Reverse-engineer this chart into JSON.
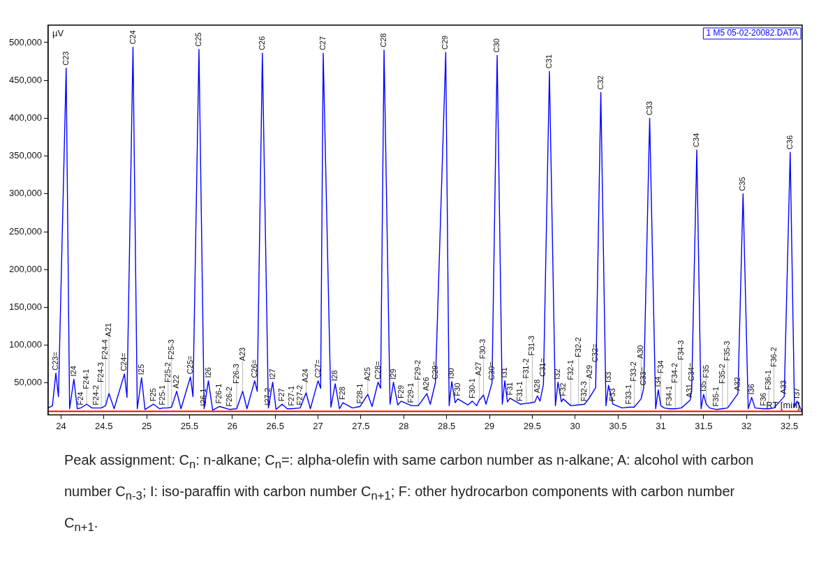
{
  "chart_data": {
    "type": "line",
    "xlabel": "RT [min]",
    "ylabel": "µV",
    "x": [
      23.85,
      23.9,
      23.94,
      23.97,
      24.06,
      24.1,
      24.15,
      24.19,
      24.23,
      24.3,
      24.36,
      24.41,
      24.47,
      24.52,
      24.56,
      24.62,
      24.74,
      24.77,
      24.84,
      24.89,
      24.94,
      24.98,
      25.08,
      25.15,
      25.19,
      25.25,
      25.29,
      25.35,
      25.4,
      25.51,
      25.54,
      25.61,
      25.67,
      25.72,
      25.77,
      25.85,
      25.97,
      26.05,
      26.12,
      26.17,
      26.26,
      26.29,
      26.35,
      26.42,
      26.47,
      26.51,
      26.58,
      26.64,
      26.69,
      26.79,
      26.86,
      26.91,
      27.0,
      27.03,
      27.06,
      27.15,
      27.2,
      27.25,
      27.29,
      27.4,
      27.49,
      27.58,
      27.63,
      27.7,
      27.73,
      27.77,
      27.84,
      27.88,
      27.93,
      27.97,
      28.09,
      28.17,
      28.27,
      28.31,
      28.37,
      28.49,
      28.53,
      28.56,
      28.6,
      28.63,
      28.75,
      28.8,
      28.85,
      28.88,
      28.93,
      28.96,
      29.03,
      29.09,
      29.15,
      29.18,
      29.21,
      29.24,
      29.36,
      29.43,
      29.5,
      29.53,
      29.56,
      29.59,
      29.63,
      29.7,
      29.77,
      29.8,
      29.84,
      29.86,
      29.95,
      30.04,
      30.11,
      30.17,
      30.24,
      30.3,
      30.36,
      30.39,
      30.44,
      30.55,
      30.63,
      30.69,
      30.77,
      30.8,
      30.87,
      30.94,
      30.97,
      31.0,
      31.04,
      31.1,
      31.17,
      31.24,
      31.34,
      31.36,
      31.42,
      31.47,
      31.5,
      31.53,
      31.57,
      31.65,
      31.72,
      31.78,
      31.9,
      31.96,
      32.02,
      32.06,
      32.1,
      32.2,
      32.26,
      32.32,
      32.44,
      32.51,
      32.56,
      32.59,
      32.65
    ],
    "series": [
      {
        "color": "#0000ff",
        "values": [
          17000,
          20000,
          63000,
          32000,
          466000,
          16000,
          55000,
          16000,
          17000,
          22000,
          17000,
          17000,
          17000,
          20000,
          36000,
          16000,
          62000,
          31000,
          494000,
          16000,
          57000,
          15000,
          22000,
          16000,
          17000,
          17000,
          18000,
          39000,
          16000,
          58000,
          32000,
          491000,
          16000,
          53000,
          14000,
          19000,
          15000,
          16000,
          39000,
          16000,
          53000,
          39000,
          486000,
          17000,
          51000,
          15000,
          22000,
          16000,
          16000,
          17000,
          37000,
          16000,
          53000,
          43000,
          486000,
          18000,
          49000,
          16000,
          24000,
          17000,
          19000,
          35000,
          19000,
          51000,
          43000,
          490000,
          22000,
          51000,
          21000,
          26000,
          20000,
          20000,
          36000,
          22000,
          51000,
          487000,
          20000,
          52000,
          24000,
          29000,
          21000,
          26000,
          20000,
          27000,
          34000,
          22000,
          50000,
          483000,
          22000,
          53000,
          25000,
          30000,
          22000,
          23000,
          24000,
          25000,
          33000,
          26000,
          48000,
          462000,
          20000,
          51000,
          25000,
          29000,
          20000,
          21000,
          22000,
          31000,
          44000,
          434000,
          20000,
          47000,
          22000,
          17000,
          18000,
          18000,
          29000,
          43000,
          400000,
          16000,
          41000,
          20000,
          17000,
          16000,
          16000,
          17000,
          27000,
          39000,
          358000,
          16000,
          35000,
          22000,
          17000,
          15000,
          16000,
          17000,
          36000,
          300000,
          16000,
          31000,
          17000,
          16000,
          16000,
          17000,
          32000,
          355000,
          18000,
          26000,
          12000
        ]
      }
    ],
    "xlim": [
      23.85,
      32.65
    ],
    "ylim": [
      8000,
      523000
    ],
    "xticks": [
      24,
      24.5,
      25,
      25.5,
      26,
      26.5,
      27,
      27.5,
      28,
      28.5,
      29,
      29.5,
      30,
      30.5,
      31,
      31.5,
      32,
      32.5
    ],
    "yticks": [
      {
        "value": 50000,
        "label": "50,000"
      },
      {
        "value": 100000,
        "label": "100,000"
      },
      {
        "value": 150000,
        "label": "150,000"
      },
      {
        "value": 200000,
        "label": "200,000"
      },
      {
        "value": 250000,
        "label": "250,000"
      },
      {
        "value": 300000,
        "label": "300,000"
      },
      {
        "value": 350000,
        "label": "350,000"
      },
      {
        "value": 400000,
        "label": "400,000"
      },
      {
        "value": 450000,
        "label": "450,000"
      },
      {
        "value": 500000,
        "label": "500,000"
      }
    ],
    "grid": false,
    "legend": false,
    "line_style": "solid",
    "ref_lines": [
      {
        "axis": "y",
        "value": 12500,
        "label": null,
        "color": "#ff0000"
      }
    ],
    "annotations": [
      "1 M5 05-02-20082.DATA",
      "Peak assignment: C$_{n}$: n-alkane; C$_{n}$=: alpha-olefin with same carbon number as n-alkane; A: alcohol with carbon number C$_{n-3}$; I: iso-paraffin with carbon number C$_{n+1}$; F: other hydrocarbon components with carbon number C$_{n+1}$.",
      {
        "text": "C23",
        "x": 24.06,
        "y": 466000
      },
      {
        "text": "C24",
        "x": 24.84,
        "y": 494000
      },
      {
        "text": "C25",
        "x": 25.61,
        "y": 491000
      },
      {
        "text": "C26",
        "x": 26.35,
        "y": 486000
      },
      {
        "text": "C27",
        "x": 27.06,
        "y": 486000
      },
      {
        "text": "C28",
        "x": 27.77,
        "y": 490000
      },
      {
        "text": "C29",
        "x": 28.49,
        "y": 487000
      },
      {
        "text": "C30",
        "x": 29.09,
        "y": 483000
      },
      {
        "text": "C31",
        "x": 29.7,
        "y": 462000
      },
      {
        "text": "C32",
        "x": 30.3,
        "y": 434000
      },
      {
        "text": "C33",
        "x": 30.87,
        "y": 400000
      },
      {
        "text": "C34",
        "x": 31.42,
        "y": 358000
      },
      {
        "text": "C35",
        "x": 31.96,
        "y": 300000
      },
      {
        "text": "C36",
        "x": 32.51,
        "y": 355000
      },
      {
        "text": "C23=",
        "x": 23.94,
        "y": 63000
      },
      {
        "text": "I24",
        "x": 24.15,
        "y": 55000
      },
      {
        "text": "F24",
        "x": 24.23,
        "y": 17000
      },
      {
        "text": "F24-1",
        "x": 24.3,
        "y": 22000
      },
      {
        "text": "F24-2",
        "x": 24.41,
        "y": 17000
      },
      {
        "text": "F24-3",
        "x": 24.47,
        "y": 17000
      },
      {
        "text": "F24-4",
        "x": 24.52,
        "y": 20000
      },
      {
        "text": "A21",
        "x": 24.56,
        "y": 36000
      },
      {
        "text": "C24=",
        "x": 24.74,
        "y": 62000
      },
      {
        "text": "I25",
        "x": 24.94,
        "y": 57000
      },
      {
        "text": "F25",
        "x": 25.08,
        "y": 22000
      },
      {
        "text": "F25-1",
        "x": 25.19,
        "y": 17000
      },
      {
        "text": "F25-2",
        "x": 25.25,
        "y": 17000
      },
      {
        "text": "F25-3",
        "x": 25.29,
        "y": 18000
      },
      {
        "text": "A22",
        "x": 25.35,
        "y": 39000
      },
      {
        "text": "C25=",
        "x": 25.51,
        "y": 58000
      },
      {
        "text": "I26-1",
        "x": 25.67,
        "y": 16000
      },
      {
        "text": "I26",
        "x": 25.72,
        "y": 53000
      },
      {
        "text": "F26-1",
        "x": 25.85,
        "y": 19000
      },
      {
        "text": "F26-2",
        "x": 25.97,
        "y": 15000
      },
      {
        "text": "F26-3",
        "x": 26.05,
        "y": 16000
      },
      {
        "text": "A23",
        "x": 26.12,
        "y": 39000
      },
      {
        "text": "C26=",
        "x": 26.26,
        "y": 53000
      },
      {
        "text": "I27-2",
        "x": 26.42,
        "y": 17000
      },
      {
        "text": "I27",
        "x": 26.47,
        "y": 51000
      },
      {
        "text": "F27",
        "x": 26.58,
        "y": 22000
      },
      {
        "text": "F27-1",
        "x": 26.69,
        "y": 16000
      },
      {
        "text": "F27-2",
        "x": 26.79,
        "y": 17000
      },
      {
        "text": "A24",
        "x": 26.86,
        "y": 37000
      },
      {
        "text": "C27=",
        "x": 27.0,
        "y": 53000
      },
      {
        "text": "I28",
        "x": 27.2,
        "y": 49000
      },
      {
        "text": "F28",
        "x": 27.29,
        "y": 24000
      },
      {
        "text": "F28-1",
        "x": 27.49,
        "y": 19000
      },
      {
        "text": "A25",
        "x": 27.58,
        "y": 35000
      },
      {
        "text": "C28=",
        "x": 27.7,
        "y": 51000
      },
      {
        "text": "I29",
        "x": 27.88,
        "y": 51000
      },
      {
        "text": "F29",
        "x": 27.97,
        "y": 26000
      },
      {
        "text": "F29-1",
        "x": 28.09,
        "y": 20000
      },
      {
        "text": "F29-2",
        "x": 28.17,
        "y": 20000
      },
      {
        "text": "A26",
        "x": 28.27,
        "y": 36000
      },
      {
        "text": "C29=",
        "x": 28.37,
        "y": 51000
      },
      {
        "text": "I30",
        "x": 28.56,
        "y": 52000
      },
      {
        "text": "F30",
        "x": 28.63,
        "y": 29000
      },
      {
        "text": "F30-1",
        "x": 28.8,
        "y": 26000
      },
      {
        "text": "A27",
        "x": 28.88,
        "y": 27000
      },
      {
        "text": "F30-3",
        "x": 28.93,
        "y": 34000
      },
      {
        "text": "C30=",
        "x": 29.03,
        "y": 50000
      },
      {
        "text": "I31",
        "x": 29.18,
        "y": 53000
      },
      {
        "text": "F31",
        "x": 29.24,
        "y": 30000
      },
      {
        "text": "F31-1",
        "x": 29.36,
        "y": 22000
      },
      {
        "text": "F31-2",
        "x": 29.43,
        "y": 23000
      },
      {
        "text": "F31-3",
        "x": 29.5,
        "y": 24000
      },
      {
        "text": "A28",
        "x": 29.56,
        "y": 33000
      },
      {
        "text": "C31=",
        "x": 29.63,
        "y": 48000
      },
      {
        "text": "I32",
        "x": 29.8,
        "y": 51000
      },
      {
        "text": "F32",
        "x": 29.86,
        "y": 29000
      },
      {
        "text": "F32-1",
        "x": 29.95,
        "y": 20000
      },
      {
        "text": "F32-2",
        "x": 30.04,
        "y": 21000
      },
      {
        "text": "F32-3",
        "x": 30.11,
        "y": 22000
      },
      {
        "text": "A29",
        "x": 30.17,
        "y": 31000
      },
      {
        "text": "C32=",
        "x": 30.24,
        "y": 44000
      },
      {
        "text": "I33",
        "x": 30.39,
        "y": 47000
      },
      {
        "text": "F33",
        "x": 30.44,
        "y": 22000
      },
      {
        "text": "F33-1",
        "x": 30.63,
        "y": 18000
      },
      {
        "text": "F33-2",
        "x": 30.69,
        "y": 18000
      },
      {
        "text": "A30",
        "x": 30.77,
        "y": 29000
      },
      {
        "text": "C33=",
        "x": 30.8,
        "y": 43000
      },
      {
        "text": "I34",
        "x": 30.97,
        "y": 41000
      },
      {
        "text": "F34",
        "x": 31.0,
        "y": 20000
      },
      {
        "text": "F34-1",
        "x": 31.1,
        "y": 16000
      },
      {
        "text": "F34-2",
        "x": 31.17,
        "y": 16000
      },
      {
        "text": "F34-3",
        "x": 31.24,
        "y": 17000
      },
      {
        "text": "A31",
        "x": 31.34,
        "y": 27000
      },
      {
        "text": "C34=",
        "x": 31.36,
        "y": 39000
      },
      {
        "text": "I35",
        "x": 31.5,
        "y": 35000
      },
      {
        "text": "F35",
        "x": 31.53,
        "y": 22000
      },
      {
        "text": "F35-1",
        "x": 31.65,
        "y": 15000
      },
      {
        "text": "F35-2",
        "x": 31.72,
        "y": 16000
      },
      {
        "text": "F35-3",
        "x": 31.78,
        "y": 17000
      },
      {
        "text": "A32",
        "x": 31.9,
        "y": 36000
      },
      {
        "text": "I36",
        "x": 32.06,
        "y": 31000
      },
      {
        "text": "F36",
        "x": 32.2,
        "y": 16000
      },
      {
        "text": "F36-1",
        "x": 32.26,
        "y": 16000
      },
      {
        "text": "F36-2",
        "x": 32.32,
        "y": 17000
      },
      {
        "text": "A33",
        "x": 32.44,
        "y": 32000
      },
      {
        "text": "I37",
        "x": 32.59,
        "y": 26000
      }
    ]
  }
}
